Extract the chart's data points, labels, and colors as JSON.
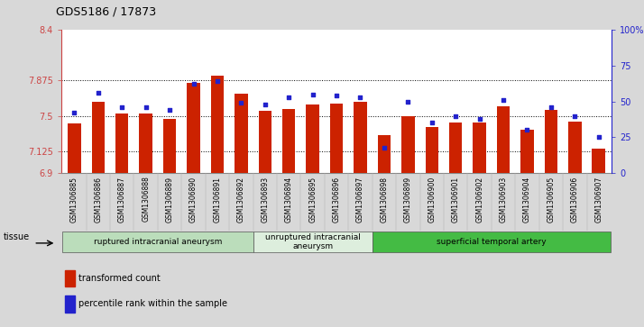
{
  "title": "GDS5186 / 17873",
  "samples": [
    "GSM1306885",
    "GSM1306886",
    "GSM1306887",
    "GSM1306888",
    "GSM1306889",
    "GSM1306890",
    "GSM1306891",
    "GSM1306892",
    "GSM1306893",
    "GSM1306894",
    "GSM1306895",
    "GSM1306896",
    "GSM1306897",
    "GSM1306898",
    "GSM1306899",
    "GSM1306900",
    "GSM1306901",
    "GSM1306902",
    "GSM1306903",
    "GSM1306904",
    "GSM1306905",
    "GSM1306906",
    "GSM1306907"
  ],
  "transformed_count": [
    7.42,
    7.65,
    7.52,
    7.52,
    7.47,
    7.84,
    7.92,
    7.73,
    7.55,
    7.57,
    7.62,
    7.63,
    7.65,
    7.3,
    7.5,
    7.38,
    7.43,
    7.43,
    7.6,
    7.35,
    7.56,
    7.44,
    7.16
  ],
  "percentile_rank": [
    42,
    56,
    46,
    46,
    44,
    62,
    64,
    49,
    48,
    53,
    55,
    54,
    53,
    18,
    50,
    35,
    40,
    38,
    51,
    30,
    46,
    40,
    25
  ],
  "ylim_left": [
    6.9,
    8.4
  ],
  "ylim_right": [
    0,
    100
  ],
  "yticks_left": [
    6.9,
    7.125,
    7.5,
    7.875,
    8.4
  ],
  "ytick_labels_left": [
    "6.9",
    "7.125",
    "7.5",
    "7.875",
    "8.4"
  ],
  "yticks_right": [
    0,
    25,
    50,
    75,
    100
  ],
  "ytick_labels_right": [
    "0",
    "25",
    "50",
    "75",
    "100%"
  ],
  "hlines": [
    7.125,
    7.5,
    7.875
  ],
  "bar_color": "#cc2200",
  "dot_color": "#2222cc",
  "bar_bottom": 6.9,
  "groups": [
    {
      "label": "ruptured intracranial aneurysm",
      "start": 0,
      "end": 8,
      "color": "#bbddbb"
    },
    {
      "label": "unruptured intracranial\naneurysm",
      "start": 8,
      "end": 13,
      "color": "#ddeedd"
    },
    {
      "label": "superficial temporal artery",
      "start": 13,
      "end": 23,
      "color": "#44bb44"
    }
  ],
  "legend_items": [
    {
      "label": "transformed count",
      "color": "#cc2200"
    },
    {
      "label": "percentile rank within the sample",
      "color": "#2222cc"
    }
  ],
  "tissue_label": "tissue",
  "left_axis_color": "#cc4444",
  "right_axis_color": "#2222cc",
  "fig_bg": "#d8d8d8",
  "plot_bg": "#ffffff",
  "xticklabel_bg": "#d8d8d8"
}
